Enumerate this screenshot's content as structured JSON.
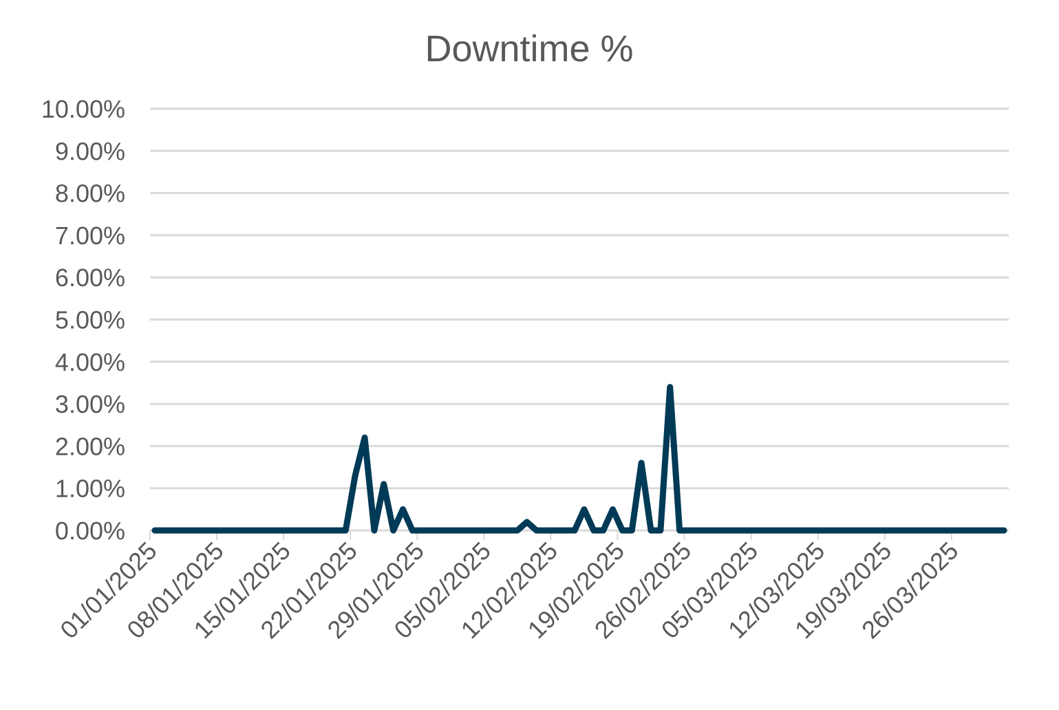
{
  "chart_data": {
    "type": "line",
    "title": "Downtime %",
    "xlabel": "",
    "ylabel": "",
    "ylim": [
      0,
      10
    ],
    "y_ticks": [
      "0.00%",
      "1.00%",
      "2.00%",
      "3.00%",
      "4.00%",
      "5.00%",
      "6.00%",
      "7.00%",
      "8.00%",
      "9.00%",
      "10.00%"
    ],
    "x_tick_labels": [
      "01/01/2025",
      "08/01/2025",
      "15/01/2025",
      "22/01/2025",
      "29/01/2025",
      "05/02/2025",
      "12/02/2025",
      "19/02/2025",
      "26/02/2025",
      "05/03/2025",
      "12/03/2025",
      "19/03/2025",
      "26/03/2025"
    ],
    "xlim": [
      "01/01/2025",
      "31/03/2025"
    ],
    "grid": true,
    "legend": "none",
    "series_color": "#003a57",
    "series": [
      {
        "points": [
          [
            "01/01/2025",
            0
          ],
          [
            "20/01/2025",
            0
          ],
          [
            "21/01/2025",
            0
          ],
          [
            "22/01/2025",
            1.3
          ],
          [
            "23/01/2025",
            2.2
          ],
          [
            "24/01/2025",
            0
          ],
          [
            "25/01/2025",
            1.1
          ],
          [
            "26/01/2025",
            0
          ],
          [
            "27/01/2025",
            0.5
          ],
          [
            "28/01/2025",
            0
          ],
          [
            "08/02/2025",
            0
          ],
          [
            "09/02/2025",
            0.2
          ],
          [
            "10/02/2025",
            0
          ],
          [
            "14/02/2025",
            0
          ],
          [
            "15/02/2025",
            0.5
          ],
          [
            "16/02/2025",
            0
          ],
          [
            "17/02/2025",
            0
          ],
          [
            "18/02/2025",
            0.5
          ],
          [
            "19/02/2025",
            0
          ],
          [
            "20/02/2025",
            0
          ],
          [
            "21/02/2025",
            1.6
          ],
          [
            "22/02/2025",
            0
          ],
          [
            "23/02/2025",
            0
          ],
          [
            "24/02/2025",
            3.4
          ],
          [
            "25/02/2025",
            0
          ],
          [
            "31/03/2025",
            0
          ]
        ]
      }
    ]
  }
}
